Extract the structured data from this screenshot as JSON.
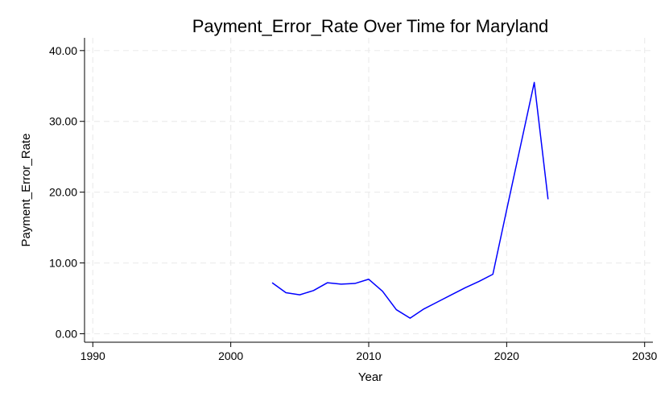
{
  "chart_data": {
    "type": "line",
    "title": "Payment_Error_Rate Over Time for Maryland",
    "xlabel": "Year",
    "ylabel": "Payment_Error_Rate",
    "xlim": [
      1989.4,
      2030.6
    ],
    "ylim": [
      -1.2,
      41.8
    ],
    "xticks": [
      1990,
      2000,
      2010,
      2020,
      2030
    ],
    "yticks": [
      0,
      10,
      20,
      30,
      40
    ],
    "ytick_format": "0.00",
    "grid": true,
    "line_color": "#0000ff",
    "series": [
      {
        "x": [
          2003,
          2004,
          2005,
          2006,
          2007,
          2008,
          2009,
          2010,
          2011,
          2012,
          2013,
          2014,
          2015,
          2016,
          2017,
          2018,
          2019,
          2020,
          2021,
          2022,
          2023
        ],
        "values": [
          7.2,
          5.8,
          5.5,
          6.1,
          7.2,
          7.0,
          7.1,
          7.7,
          6.0,
          3.4,
          2.2,
          3.5,
          4.5,
          5.5,
          6.5,
          7.4,
          8.4,
          17.5,
          26.5,
          35.5,
          19.0
        ]
      }
    ]
  }
}
